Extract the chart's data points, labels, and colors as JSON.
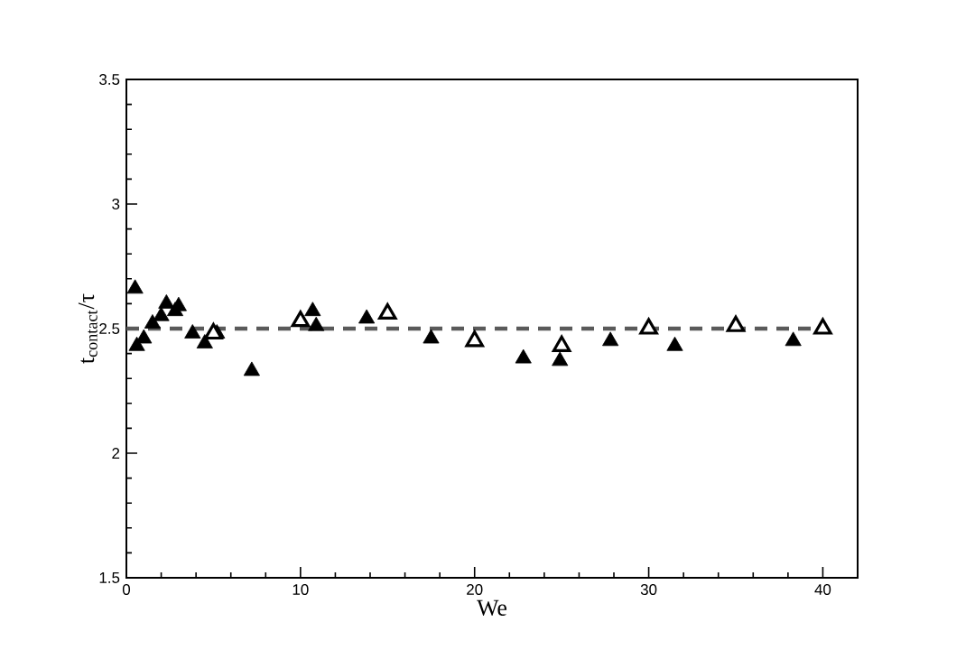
{
  "chart_data": {
    "type": "scatter",
    "xlabel": "We",
    "ylabel": "t$_{contact}$/τ",
    "xlim": [
      0,
      42
    ],
    "ylim": [
      1.5,
      3.5
    ],
    "xticks": [
      0,
      10,
      20,
      30,
      40
    ],
    "yticks": [
      1.5,
      2,
      2.5,
      3,
      3.5
    ],
    "grid": false,
    "marker": "triangle",
    "series": [
      {
        "color": "#000000",
        "x": [
          0.5,
          0.6,
          1,
          1.5,
          2,
          2.3,
          2.8,
          3,
          3.8,
          4.5,
          5.2,
          7.2,
          10.7,
          10.9,
          13.8,
          17.5,
          22.8,
          24.9,
          27.8,
          31.5,
          38.3
        ],
        "values": [
          2.66,
          2.43,
          2.46,
          2.52,
          2.55,
          2.6,
          2.57,
          2.59,
          2.48,
          2.44,
          2.48,
          2.33,
          2.57,
          2.51,
          2.54,
          2.46,
          2.38,
          2.37,
          2.45,
          2.43,
          2.45
        ]
      },
      {
        "color": "#ffffff",
        "x": [
          5,
          10,
          15,
          20,
          25,
          30,
          35,
          40
        ],
        "values": [
          2.48,
          2.53,
          2.56,
          2.45,
          2.43,
          2.5,
          2.51,
          2.5
        ]
      },
      {
        "type": "line",
        "color": "#5a5a5a",
        "line_style": "dashed",
        "marker": "none",
        "x": [
          0,
          40
        ],
        "values": [
          2.5,
          2.5
        ]
      }
    ]
  }
}
